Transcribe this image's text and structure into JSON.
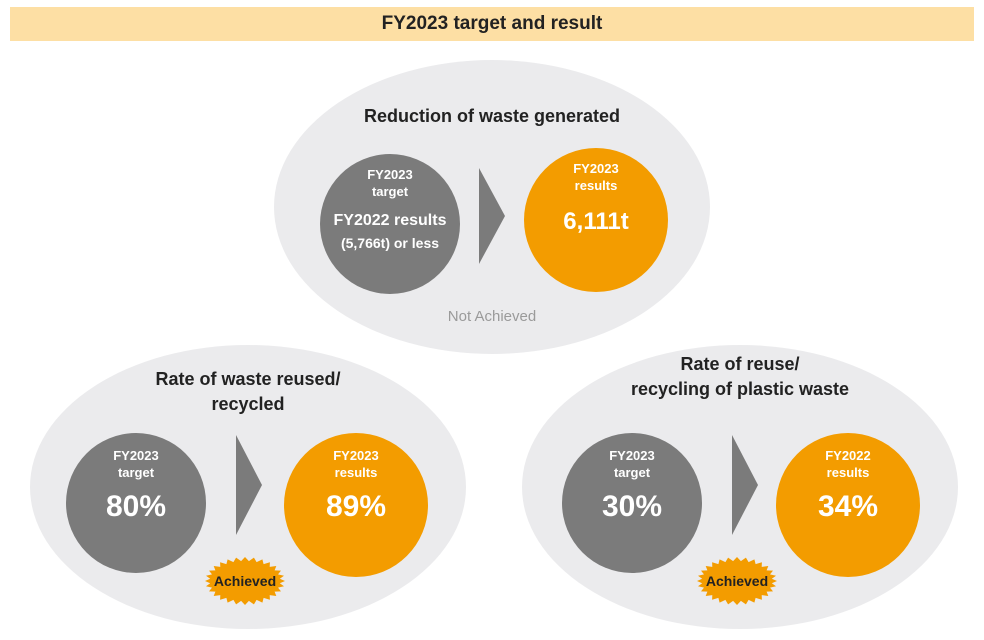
{
  "header": {
    "title": "FY2023 target and result"
  },
  "panels": [
    {
      "title": "Reduction of waste generated",
      "target_label": "FY2023\ntarget",
      "target_value_line1": "FY2022 results",
      "target_value_line2": "(5,766t) or less",
      "result_label": "FY2023\nresults",
      "result_value": "6,111t",
      "status": "Not Achieved"
    },
    {
      "title": "Rate of waste reused/\nrecycled",
      "target_label": "FY2023\ntarget",
      "target_value": "80%",
      "result_label": "FY2023\nresults",
      "result_value": "89%",
      "status": "Achieved"
    },
    {
      "title": "Rate of reuse/\nrecycling of plastic waste",
      "target_label": "FY2023\ntarget",
      "target_value": "30%",
      "result_label": "FY2022\nresults",
      "result_value": "34%",
      "status": "Achieved"
    }
  ],
  "colors": {
    "target": "#7b7b7b",
    "result": "#f39c00",
    "badge": "#f39c00",
    "header": "#fddfa4",
    "oval": "#ebebed"
  }
}
